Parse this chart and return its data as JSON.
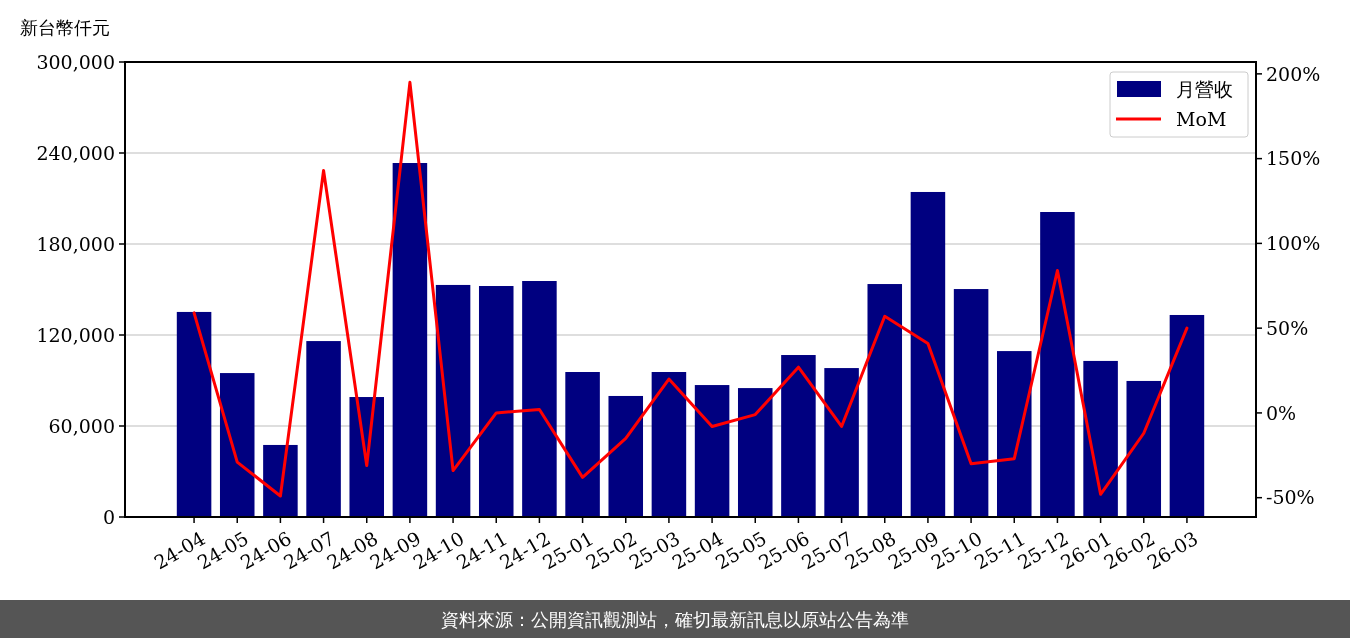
{
  "chart_data": {
    "type": "bar",
    "ylabel": "新台幣仟元",
    "categories": [
      "24-04",
      "24-05",
      "24-06",
      "24-07",
      "24-08",
      "24-09",
      "24-10",
      "24-11",
      "24-12",
      "25-01",
      "25-02",
      "25-03",
      "25-04",
      "25-05",
      "25-06",
      "25-07",
      "25-08",
      "25-09",
      "25-10",
      "25-11",
      "25-12",
      "26-01",
      "26-02",
      "26-03"
    ],
    "series": [
      {
        "name": "月營收",
        "color": "#000080",
        "values": [
          135200,
          94900,
          47500,
          116000,
          79100,
          233400,
          153000,
          152300,
          155600,
          95600,
          79800,
          95600,
          87000,
          85000,
          106800,
          98200,
          153600,
          214300,
          150300,
          109400,
          201100,
          102900,
          89700,
          133200
        ]
      },
      {
        "name": "MoM",
        "type": "line",
        "axis": "y2",
        "color": "#ff0000",
        "values": [
          59,
          -29,
          -49,
          143,
          -31,
          195,
          -34,
          0,
          2,
          -38,
          -15,
          20,
          -8,
          -1,
          27,
          -8,
          57,
          41,
          -30,
          -27,
          84,
          -48,
          -12,
          50
        ]
      }
    ],
    "ylim": [
      0,
      300000
    ],
    "yticks": [
      {
        "value": 0,
        "label": "0"
      },
      {
        "value": 60000,
        "label": "60,000"
      },
      {
        "value": 120000,
        "label": "120,000"
      },
      {
        "value": 180000,
        "label": "180,000"
      },
      {
        "value": 240000,
        "label": "240,000"
      },
      {
        "value": 300000,
        "label": "300,000"
      }
    ],
    "y2lim": [
      -61.4,
      207
    ],
    "y2ticks": [
      {
        "value": -50,
        "label": "-50%"
      },
      {
        "value": 0,
        "label": "0%"
      },
      {
        "value": 50,
        "label": "50%"
      },
      {
        "value": 100,
        "label": "100%"
      },
      {
        "value": 150,
        "label": "150%"
      },
      {
        "value": 200,
        "label": "200%"
      }
    ],
    "grid": "y",
    "legend": "top right",
    "annotations": [
      "資料來源：公開資訊觀測站，確切最新訊息以原站公告為準"
    ]
  }
}
